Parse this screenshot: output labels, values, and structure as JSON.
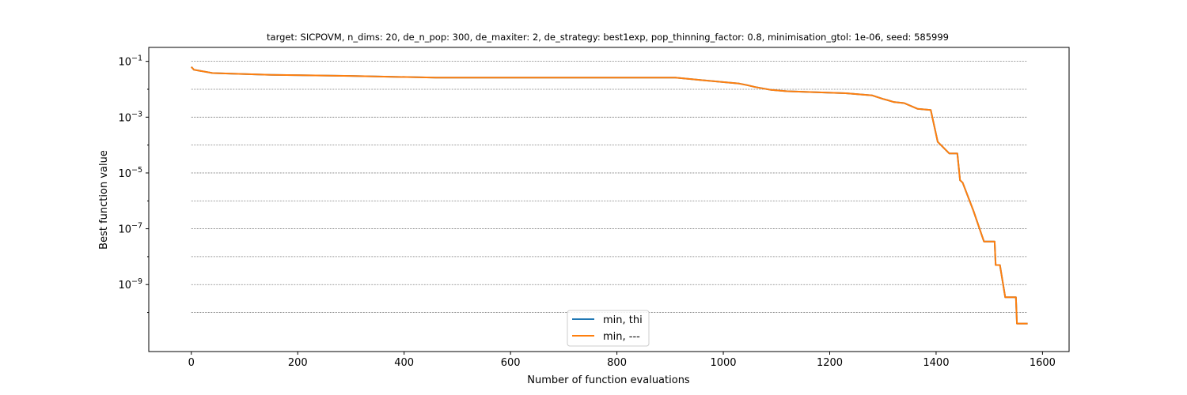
{
  "chart_data": {
    "type": "line",
    "title": "target: SICPOVM, n_dims: 20, de_n_pop: 300, de_maxiter: 2, de_strategy: best1exp, pop_thinning_factor: 0.8, minimisation_gtol: 1e-06, seed: 585999",
    "xlabel": "Number of function evaluations",
    "ylabel": "Best function value",
    "xlim": [
      -80,
      1650
    ],
    "ylim_log10": [
      -11.4,
      -0.5
    ],
    "yscale": "log",
    "xticks": [
      0,
      200,
      400,
      600,
      800,
      1000,
      1200,
      1400,
      1600
    ],
    "xtick_labels": [
      "0",
      "200",
      "400",
      "600",
      "800",
      "1000",
      "1200",
      "1400",
      "1600"
    ],
    "yticks_log10": [
      -1,
      -3,
      -5,
      -7,
      -9
    ],
    "ytick_labels": [
      {
        "base": "10",
        "exp": "−1"
      },
      {
        "base": "10",
        "exp": "−3"
      },
      {
        "base": "10",
        "exp": "−5"
      },
      {
        "base": "10",
        "exp": "−7"
      },
      {
        "base": "10",
        "exp": "−9"
      }
    ],
    "grid_log10": [
      -1,
      -2,
      -3,
      -4,
      -5,
      -6,
      -7,
      -8,
      -9,
      -10
    ],
    "grid": "horizontal dashed",
    "legend_position": "lower center",
    "series": [
      {
        "name": "min, thi",
        "color": "#1f77b4",
        "x": [
          0,
          5,
          40,
          150,
          300,
          460,
          700,
          910,
          1030,
          1045,
          1060,
          1090,
          1120,
          1230,
          1280,
          1300,
          1310,
          1320,
          1340,
          1365,
          1390,
          1403,
          1425,
          1440,
          1445,
          1450,
          1470,
          1490,
          1510,
          1512,
          1520,
          1530,
          1550,
          1552,
          1572
        ],
        "y": [
          0.063,
          0.05,
          0.038,
          0.033,
          0.03,
          0.026,
          0.026,
          0.026,
          0.016,
          0.014,
          0.012,
          0.0095,
          0.0085,
          0.0072,
          0.006,
          0.0045,
          0.004,
          0.0035,
          0.0032,
          0.002,
          0.0018,
          0.00013,
          5e-05,
          5e-05,
          5.5e-06,
          4.5e-06,
          4.5e-07,
          3.5e-08,
          3.5e-08,
          5e-09,
          5e-09,
          3.5e-10,
          3.5e-10,
          4e-11,
          4e-11
        ]
      },
      {
        "name": "min, ---",
        "color": "#ff7f0e",
        "x": [
          0,
          5,
          40,
          150,
          300,
          460,
          700,
          910,
          1030,
          1045,
          1060,
          1090,
          1120,
          1230,
          1280,
          1300,
          1310,
          1320,
          1340,
          1365,
          1390,
          1403,
          1425,
          1440,
          1445,
          1450,
          1470,
          1490,
          1510,
          1512,
          1520,
          1530,
          1550,
          1552,
          1572
        ],
        "y": [
          0.063,
          0.05,
          0.038,
          0.033,
          0.03,
          0.026,
          0.026,
          0.026,
          0.016,
          0.014,
          0.012,
          0.0095,
          0.0085,
          0.0072,
          0.006,
          0.0045,
          0.004,
          0.0035,
          0.0032,
          0.002,
          0.0018,
          0.00013,
          5e-05,
          5e-05,
          5.5e-06,
          4.5e-06,
          4.5e-07,
          3.5e-08,
          3.5e-08,
          5e-09,
          5e-09,
          3.5e-10,
          3.5e-10,
          4e-11,
          4e-11
        ]
      }
    ]
  }
}
